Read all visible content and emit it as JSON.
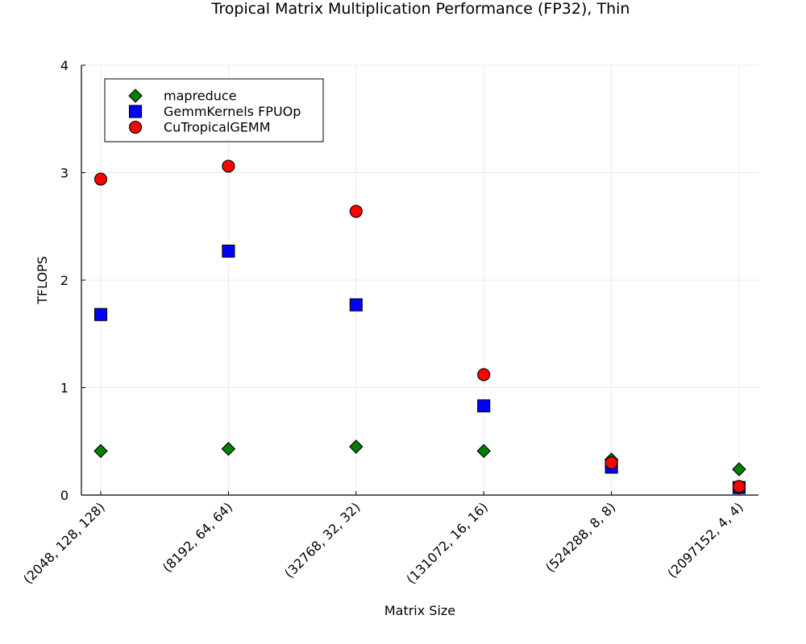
{
  "chart_data": {
    "type": "scatter",
    "title": "Tropical Matrix Multiplication Performance (FP32), Thin",
    "xlabel": "Matrix Size",
    "ylabel": "TFLOPS",
    "categories": [
      "(2048, 128, 128)",
      "(8192, 64, 64)",
      "(32768, 32, 32)",
      "(131072, 16, 16)",
      "(524288, 8, 8)",
      "(2097152, 4, 4)"
    ],
    "ylim": [
      0,
      4
    ],
    "yticks": [
      "0",
      "1",
      "2",
      "3",
      "4"
    ],
    "grid": true,
    "legend_position": "top-left",
    "series": [
      {
        "name": "mapreduce",
        "marker": "diamond",
        "color": "#008000",
        "values": [
          0.41,
          0.43,
          0.45,
          0.41,
          0.33,
          0.24
        ]
      },
      {
        "name": "GemmKernels FPUOp",
        "marker": "square",
        "color": "#0000ff",
        "values": [
          1.68,
          2.27,
          1.77,
          0.83,
          0.26,
          0.07
        ]
      },
      {
        "name": "CuTropicalGEMM",
        "marker": "circle",
        "color": "#ff0000",
        "values": [
          2.94,
          3.06,
          2.64,
          1.12,
          0.3,
          0.08
        ]
      }
    ]
  }
}
